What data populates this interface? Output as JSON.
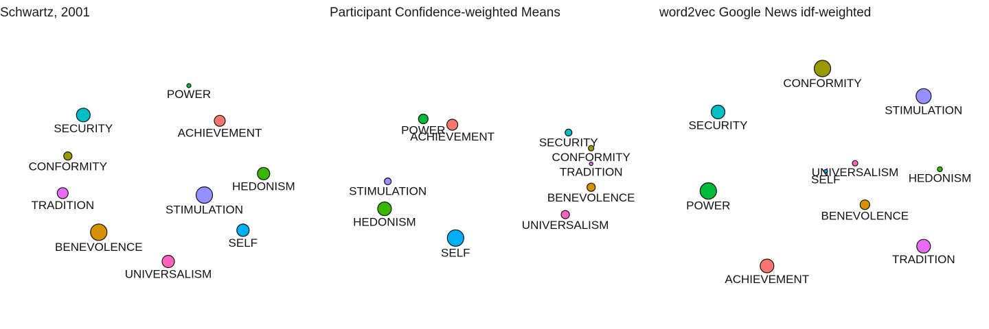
{
  "chart_data": [
    {
      "type": "scatter",
      "title": "Schwartz, 2001",
      "points": [
        {
          "label": "SECURITY",
          "x": 0.27,
          "y": 0.85,
          "size": 4,
          "color": "#00BFC4"
        },
        {
          "label": "POWER",
          "x": 0.68,
          "y": 1.0,
          "size": 0.5,
          "color": "#00BA38"
        },
        {
          "label": "ACHIEVEMENT",
          "x": 0.8,
          "y": 0.82,
          "size": 3,
          "color": "#F8766D"
        },
        {
          "label": "CONFORMITY",
          "x": 0.21,
          "y": 0.64,
          "size": 2,
          "color": "#999900"
        },
        {
          "label": "HEDONISM",
          "x": 0.97,
          "y": 0.55,
          "size": 3.5,
          "color": "#39B600"
        },
        {
          "label": "TRADITION",
          "x": 0.19,
          "y": 0.45,
          "size": 3,
          "color": "#E76BF3"
        },
        {
          "label": "STIMULATION",
          "x": 0.74,
          "y": 0.44,
          "size": 5,
          "color": "#9590FF"
        },
        {
          "label": "BENEVOLENCE",
          "x": 0.33,
          "y": 0.25,
          "size": 5,
          "color": "#D89000"
        },
        {
          "label": "SELF",
          "x": 0.89,
          "y": 0.26,
          "size": 3.5,
          "color": "#00B0F6"
        },
        {
          "label": "UNIVERSALISM",
          "x": 0.6,
          "y": 0.1,
          "size": 3.5,
          "color": "#FF62BC"
        }
      ]
    },
    {
      "type": "scatter",
      "title": "Participant Confidence-weighted Means",
      "points": [
        {
          "label": "POWER",
          "x": 0.29,
          "y": 0.83,
          "size": 2.5,
          "color": "#00BA38"
        },
        {
          "label": "ACHIEVEMENT",
          "x": 0.38,
          "y": 0.8,
          "size": 3,
          "color": "#F8766D"
        },
        {
          "label": "SECURITY",
          "x": 0.74,
          "y": 0.76,
          "size": 1.5,
          "color": "#00BFC4"
        },
        {
          "label": "CONFORMITY",
          "x": 0.81,
          "y": 0.68,
          "size": 1,
          "color": "#999900"
        },
        {
          "label": "TRADITION",
          "x": 0.81,
          "y": 0.6,
          "size": 0.3,
          "color": "#E76BF3"
        },
        {
          "label": "STIMULATION",
          "x": 0.18,
          "y": 0.51,
          "size": 1.5,
          "color": "#9590FF"
        },
        {
          "label": "BENEVOLENCE",
          "x": 0.81,
          "y": 0.48,
          "size": 2,
          "color": "#D89000"
        },
        {
          "label": "HEDONISM",
          "x": 0.17,
          "y": 0.37,
          "size": 4,
          "color": "#39B600"
        },
        {
          "label": "UNIVERSALISM",
          "x": 0.73,
          "y": 0.34,
          "size": 2,
          "color": "#FF62BC"
        },
        {
          "label": "SELF",
          "x": 0.39,
          "y": 0.22,
          "size": 5,
          "color": "#00B0F6"
        }
      ]
    },
    {
      "type": "scatter",
      "title": "word2vec Google News idf-weighted",
      "points": [
        {
          "label": "CONFORMITY",
          "x": 0.5,
          "y": 1.0,
          "size": 5,
          "color": "#999900"
        },
        {
          "label": "STIMULATION",
          "x": 0.81,
          "y": 0.86,
          "size": 4.5,
          "color": "#9590FF"
        },
        {
          "label": "SECURITY",
          "x": 0.18,
          "y": 0.78,
          "size": 4,
          "color": "#00BFC4"
        },
        {
          "label": "UNIVERSALISM",
          "x": 0.6,
          "y": 0.52,
          "size": 1,
          "color": "#FF62BC"
        },
        {
          "label": "SELF",
          "x": 0.51,
          "y": 0.48,
          "size": 0.3,
          "color": "#00B0F6"
        },
        {
          "label": "HEDONISM",
          "x": 0.86,
          "y": 0.49,
          "size": 0.8,
          "color": "#39B600"
        },
        {
          "label": "POWER",
          "x": 0.15,
          "y": 0.38,
          "size": 5,
          "color": "#00BA38"
        },
        {
          "label": "BENEVOLENCE",
          "x": 0.63,
          "y": 0.31,
          "size": 2.5,
          "color": "#D89000"
        },
        {
          "label": "TRADITION",
          "x": 0.81,
          "y": 0.1,
          "size": 4,
          "color": "#E76BF3"
        },
        {
          "label": "ACHIEVEMENT",
          "x": 0.33,
          "y": 0.0,
          "size": 4,
          "color": "#F8766D"
        }
      ]
    }
  ]
}
